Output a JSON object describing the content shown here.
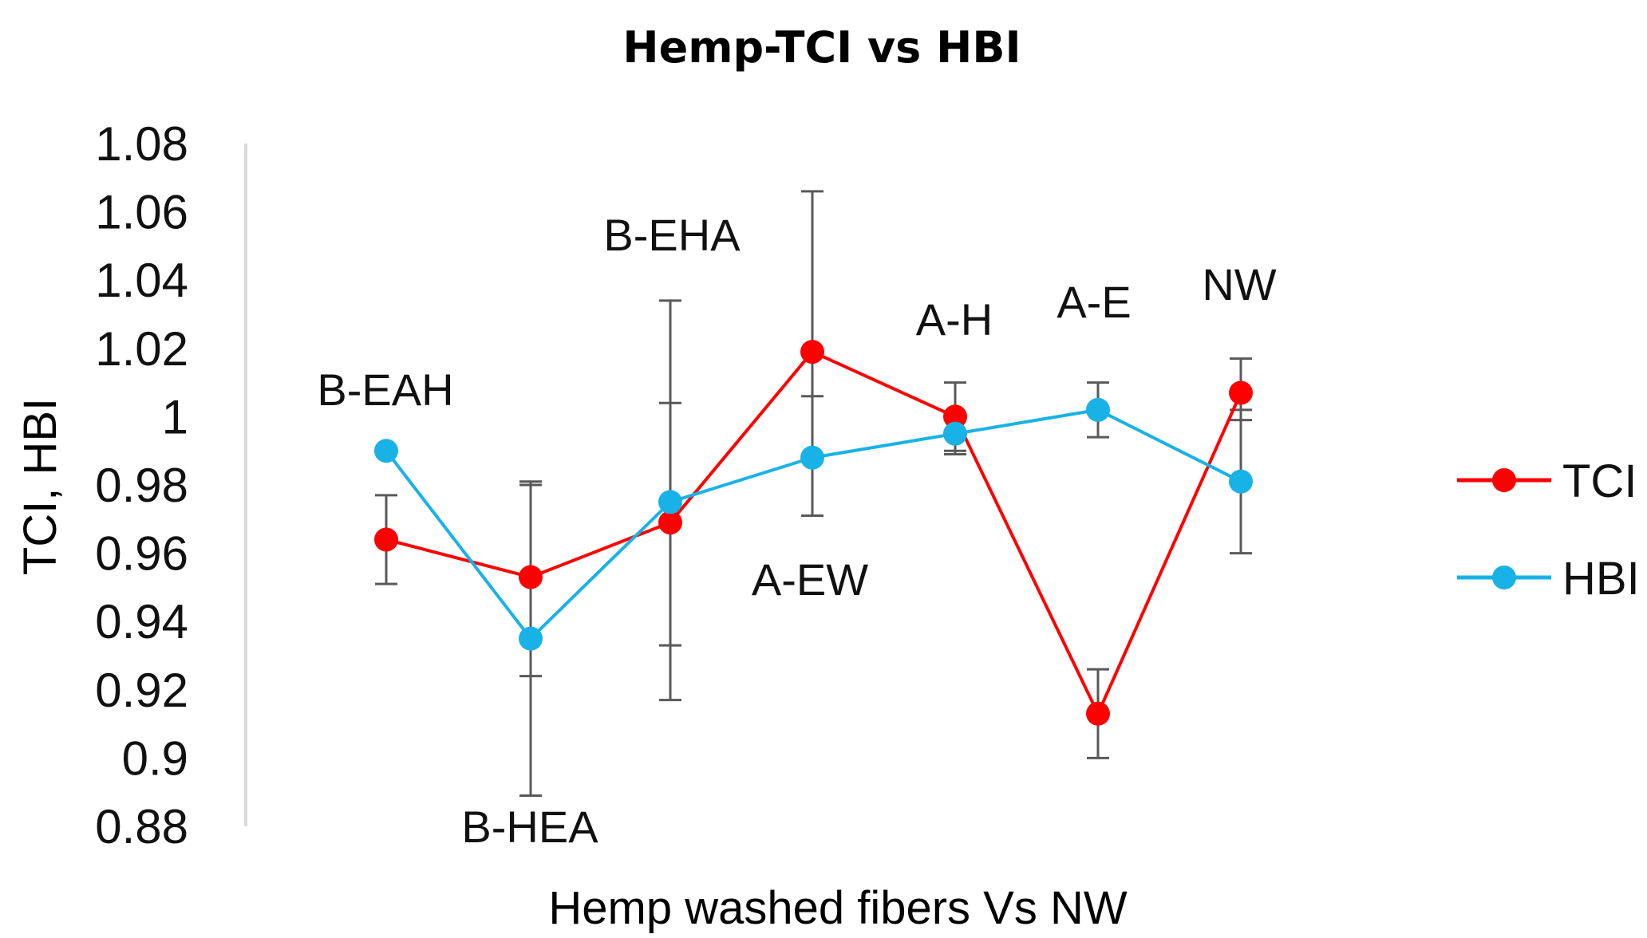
{
  "chart_data": {
    "type": "line",
    "title": "Hemp-TCI vs HBI",
    "xlabel": "Hemp washed fibers Vs NW",
    "ylabel": "TCI, HBI",
    "ylim": [
      0.88,
      1.08
    ],
    "yticks": [
      "1.08",
      "1.06",
      "1.04",
      "1.02",
      "1",
      "0.98",
      "0.96",
      "0.94",
      "0.92",
      "0.9",
      "0.88"
    ],
    "categories": [
      "B-EAH",
      "B-HEA",
      "B-EHA",
      "A-EW",
      "A-H",
      "A-E",
      "NW"
    ],
    "grid": false,
    "legend_position": "right",
    "series": [
      {
        "name": "TCI",
        "color": "#ff0000",
        "values": [
          0.964,
          0.953,
          0.969,
          1.019,
          1.0,
          0.913,
          1.007
        ],
        "err_low": [
          0.951,
          0.924,
          0.933,
          0.971,
          0.989,
          0.9,
          0.999
        ],
        "err_high": [
          0.977,
          0.981,
          1.004,
          1.066,
          1.01,
          0.926,
          1.017
        ]
      },
      {
        "name": "HBI",
        "color": "#19b2e6",
        "values": [
          0.99,
          0.935,
          0.975,
          0.988,
          0.995,
          1.002,
          0.981
        ],
        "err_low": [
          0.99,
          0.889,
          0.917,
          0.971,
          0.99,
          0.994,
          0.96
        ],
        "err_high": [
          0.99,
          0.98,
          1.034,
          1.006,
          1.0,
          1.01,
          1.002
        ]
      }
    ]
  }
}
